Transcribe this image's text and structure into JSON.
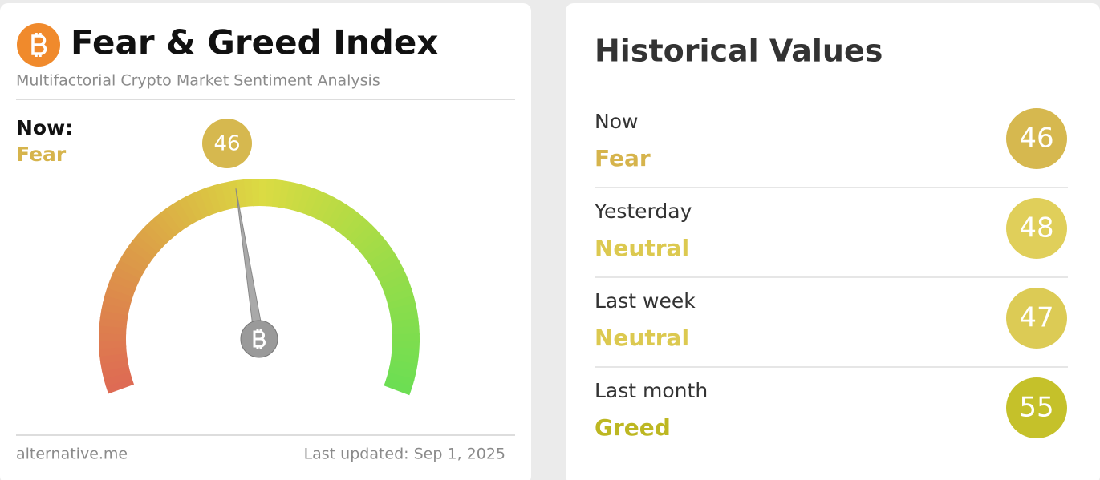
{
  "gauge_card": {
    "title": "Fear & Greed Index",
    "subtitle": "Multifactorial Crypto Market Sentiment Analysis",
    "now_label": "Now:",
    "now_class": "Fear",
    "value": 46,
    "range": [
      0,
      100
    ],
    "class_color": "#d6b44c",
    "badge_color": "#d6b84f",
    "source": "alternative.me",
    "updated": "Last updated: Sep 1, 2025"
  },
  "history": {
    "title": "Historical Values",
    "rows": [
      {
        "period": "Now",
        "class": "Fear",
        "value": 46,
        "text_color": "#d6b44c",
        "badge_color": "#d6b84f"
      },
      {
        "period": "Yesterday",
        "class": "Neutral",
        "value": 48,
        "text_color": "#dcc950",
        "badge_color": "#e0cf5a"
      },
      {
        "period": "Last week",
        "class": "Neutral",
        "value": 47,
        "text_color": "#dcc950",
        "badge_color": "#dccb55"
      },
      {
        "period": "Last month",
        "class": "Greed",
        "value": 55,
        "text_color": "#bdb722",
        "badge_color": "#c5c12a"
      }
    ]
  }
}
